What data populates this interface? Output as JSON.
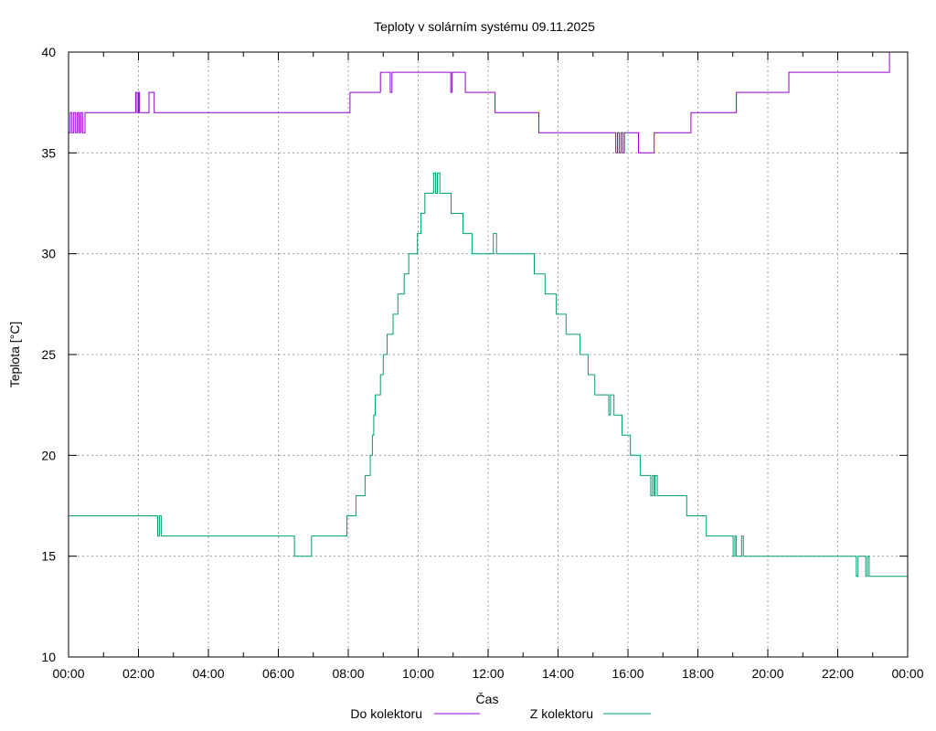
{
  "chart_data": {
    "type": "line",
    "title": "Teploty v solárním systému 09.11.2025",
    "xlabel": "Čas",
    "ylabel": "Teplota [°C]",
    "xlim_hours": [
      0,
      24
    ],
    "ylim": [
      10,
      40
    ],
    "grid": true,
    "legend_position": "bottom-center",
    "x_tick_labels": [
      "00:00",
      "02:00",
      "04:00",
      "06:00",
      "08:00",
      "10:00",
      "12:00",
      "14:00",
      "16:00",
      "18:00",
      "20:00",
      "22:00",
      "00:00"
    ],
    "y_tick_labels": [
      "10",
      "15",
      "20",
      "25",
      "30",
      "35",
      "40"
    ],
    "series": [
      {
        "name": "Do kolektoru",
        "color": "#9400d3",
        "points": [
          [
            0,
            36
          ],
          [
            0.05,
            37
          ],
          [
            0.1,
            36
          ],
          [
            0.15,
            37
          ],
          [
            0.2,
            36
          ],
          [
            0.25,
            37
          ],
          [
            0.3,
            36
          ],
          [
            0.35,
            37
          ],
          [
            0.4,
            36
          ],
          [
            0.47,
            37
          ],
          [
            1.92,
            38
          ],
          [
            1.96,
            37
          ],
          [
            2.0,
            38
          ],
          [
            2.03,
            37
          ],
          [
            2.3,
            38
          ],
          [
            2.45,
            37
          ],
          [
            8.05,
            38
          ],
          [
            8.92,
            39
          ],
          [
            9.2,
            38
          ],
          [
            9.25,
            39
          ],
          [
            10.93,
            38
          ],
          [
            10.97,
            39
          ],
          [
            11.35,
            38
          ],
          [
            12.2,
            37
          ],
          [
            13.45,
            36
          ],
          [
            15.65,
            35
          ],
          [
            15.7,
            36
          ],
          [
            15.75,
            35
          ],
          [
            15.8,
            36
          ],
          [
            15.85,
            35
          ],
          [
            15.9,
            36
          ],
          [
            16.3,
            35
          ],
          [
            16.75,
            36
          ],
          [
            17.8,
            37
          ],
          [
            19.1,
            38
          ],
          [
            20.6,
            39
          ],
          [
            23.48,
            40
          ],
          [
            23.5,
            40
          ]
        ]
      },
      {
        "name": "Z kolektoru",
        "color": "#009e73",
        "points": [
          [
            0,
            17
          ],
          [
            2.55,
            16
          ],
          [
            2.6,
            17
          ],
          [
            2.65,
            16
          ],
          [
            6.46,
            15
          ],
          [
            6.95,
            16
          ],
          [
            7.96,
            17
          ],
          [
            8.22,
            18
          ],
          [
            8.48,
            19
          ],
          [
            8.63,
            20
          ],
          [
            8.69,
            21
          ],
          [
            8.73,
            22
          ],
          [
            8.77,
            23
          ],
          [
            8.92,
            24
          ],
          [
            9.0,
            25
          ],
          [
            9.11,
            26
          ],
          [
            9.28,
            27
          ],
          [
            9.42,
            28
          ],
          [
            9.6,
            29
          ],
          [
            9.73,
            30
          ],
          [
            9.98,
            31
          ],
          [
            10.08,
            32
          ],
          [
            10.19,
            33
          ],
          [
            10.44,
            34
          ],
          [
            10.5,
            33
          ],
          [
            10.55,
            34
          ],
          [
            10.62,
            33
          ],
          [
            10.94,
            32
          ],
          [
            11.28,
            31
          ],
          [
            11.54,
            30
          ],
          [
            12.15,
            31
          ],
          [
            12.24,
            30
          ],
          [
            13.32,
            29
          ],
          [
            13.63,
            28
          ],
          [
            13.95,
            27
          ],
          [
            14.23,
            26
          ],
          [
            14.63,
            25
          ],
          [
            14.86,
            24
          ],
          [
            15.05,
            23
          ],
          [
            15.45,
            22
          ],
          [
            15.5,
            23
          ],
          [
            15.6,
            22
          ],
          [
            15.83,
            21
          ],
          [
            16.07,
            20
          ],
          [
            16.35,
            19
          ],
          [
            16.65,
            18
          ],
          [
            16.7,
            19
          ],
          [
            16.75,
            18
          ],
          [
            16.78,
            19
          ],
          [
            16.84,
            18
          ],
          [
            17.68,
            17
          ],
          [
            18.24,
            16
          ],
          [
            19.01,
            15
          ],
          [
            19.06,
            16
          ],
          [
            19.1,
            15
          ],
          [
            19.25,
            16
          ],
          [
            19.3,
            15
          ],
          [
            22.53,
            14
          ],
          [
            22.58,
            15
          ],
          [
            22.8,
            14
          ],
          [
            22.85,
            15
          ],
          [
            22.9,
            14
          ],
          [
            24,
            14
          ]
        ]
      }
    ]
  }
}
